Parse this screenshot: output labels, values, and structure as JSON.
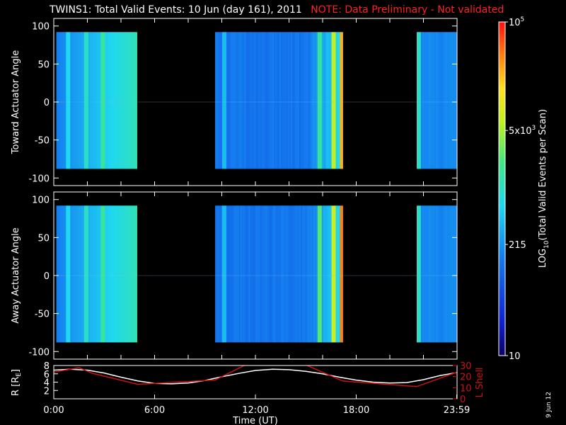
{
  "title": "TWINS1: Total Valid Events: 10 Jun (day 161), 2011",
  "note": "NOTE: Data Preliminary - Not validated",
  "datestamp": "9 Jun 12",
  "colors": {
    "background": "#000000",
    "axes": "#ffffff",
    "note": "#ff2020",
    "r_line": "#ffffff",
    "lshell_line": "#d01010"
  },
  "chart_data": [
    {
      "type": "heatmap",
      "name": "toward",
      "ylabel": "Toward Actuator Angle",
      "ylim": [
        -110,
        110
      ],
      "yticks": [
        100,
        50,
        0,
        -50,
        -100
      ],
      "xlim_hours": [
        0,
        24
      ],
      "angle_range": [
        -88,
        92
      ],
      "data_intervals_hours": [
        [
          0.15,
          4.95
        ],
        [
          9.6,
          17.2
        ],
        [
          21.6,
          23.98
        ]
      ],
      "bright_stripes_hours": [
        {
          "t": 0.8,
          "level": 0.45
        },
        {
          "t": 1.9,
          "level": 0.5
        },
        {
          "t": 2.9,
          "level": 0.55
        },
        {
          "t": 10.1,
          "level": 0.4
        },
        {
          "t": 15.8,
          "level": 0.55
        },
        {
          "t": 16.6,
          "level": 0.7
        },
        {
          "t": 17.1,
          "level": 0.85
        },
        {
          "t": 21.7,
          "level": 0.5
        }
      ]
    },
    {
      "type": "heatmap",
      "name": "away",
      "ylabel": "Away Actuator Angle",
      "ylim": [
        -110,
        110
      ],
      "yticks": [
        100,
        50,
        0,
        -50,
        -100
      ],
      "xlim_hours": [
        0,
        24
      ],
      "angle_range": [
        -88,
        92
      ],
      "data_intervals_hours": [
        [
          0.15,
          4.95
        ],
        [
          9.6,
          17.2
        ],
        [
          21.6,
          23.98
        ]
      ],
      "bright_stripes_hours": [
        {
          "t": 0.8,
          "level": 0.45
        },
        {
          "t": 1.9,
          "level": 0.5
        },
        {
          "t": 2.9,
          "level": 0.55
        },
        {
          "t": 10.1,
          "level": 0.4
        },
        {
          "t": 15.8,
          "level": 0.6
        },
        {
          "t": 16.6,
          "level": 0.72
        },
        {
          "t": 17.1,
          "level": 0.9
        },
        {
          "t": 21.7,
          "level": 0.5
        }
      ]
    },
    {
      "type": "line",
      "name": "orbit",
      "xlabel": "Time (UT)",
      "xticks": [
        "0:00",
        "6:00",
        "12:00",
        "18:00",
        "23:59"
      ],
      "xtick_hours": [
        0,
        6,
        12,
        18,
        23.98
      ],
      "ylabel_left": "R [R_E]",
      "ylabel_left_main": "R [R",
      "ylabel_left_sub": "E",
      "ylabel_left_end": "]",
      "yticks_left": [
        2,
        4,
        6,
        8
      ],
      "ylim_left": [
        0,
        8
      ],
      "ylabel_right": "L Shell",
      "yticks_right": [
        0,
        10,
        20,
        30
      ],
      "ylim_right": [
        0,
        30
      ],
      "series": [
        {
          "name": "R",
          "axis": "left",
          "x": [
            0,
            1,
            2,
            3,
            4,
            5,
            6,
            7,
            8,
            9,
            10,
            11,
            12,
            13,
            14,
            15,
            16,
            17,
            18,
            19,
            20,
            21,
            22,
            23,
            24
          ],
          "y": [
            6.9,
            7.1,
            6.9,
            6.2,
            5.2,
            4.3,
            3.7,
            3.6,
            3.8,
            4.4,
            5.3,
            6.1,
            6.8,
            7.1,
            7.0,
            6.6,
            6.0,
            5.2,
            4.5,
            4.0,
            3.8,
            3.9,
            4.6,
            5.6,
            6.3
          ]
        },
        {
          "name": "L Shell",
          "axis": "right",
          "x": [
            0,
            1.5,
            2.3,
            5.0,
            9.6,
            11.4,
            15.0,
            17.2,
            21.6,
            24
          ],
          "y": [
            24,
            28,
            23,
            13,
            17,
            30.5,
            30.5,
            16,
            11,
            24
          ]
        }
      ]
    },
    {
      "type": "colorbar",
      "name": "colorbar",
      "label": "LOG",
      "label_sub": "10",
      "label_rest": "(Total Valid Events per Scan)",
      "scale": "log",
      "range": [
        10,
        100000
      ],
      "ticks": [
        {
          "value": 100000,
          "base": "10",
          "exp": "5"
        },
        {
          "value": 5000,
          "base": "5x10",
          "exp": "3"
        },
        {
          "value": 215,
          "base": "215",
          "exp": ""
        },
        {
          "value": 10,
          "base": "10",
          "exp": ""
        }
      ]
    }
  ]
}
